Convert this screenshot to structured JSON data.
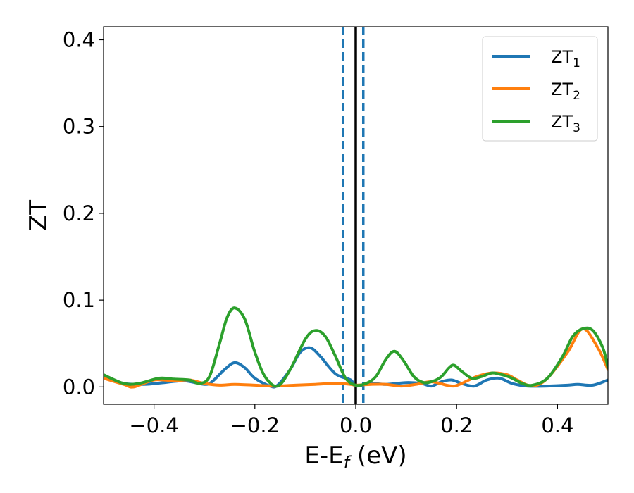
{
  "chart_data": {
    "type": "line",
    "xlabel": {
      "base": "E-E",
      "sub": "f",
      "unit": " (eV)"
    },
    "ylabel": "ZT",
    "xlim": [
      -0.5,
      0.5
    ],
    "ylim": [
      -0.02,
      0.415
    ],
    "x_ticks": [
      -0.4,
      -0.2,
      0.0,
      0.2,
      0.4
    ],
    "x_tick_labels": [
      "−0.4",
      "−0.2",
      "0.0",
      "0.2",
      "0.4"
    ],
    "y_ticks": [
      0.0,
      0.1,
      0.2,
      0.3,
      0.4
    ],
    "y_tick_labels": [
      "0.0",
      "0.1",
      "0.2",
      "0.3",
      "0.4"
    ],
    "grid": false,
    "legend_position": "top-right",
    "vlines": [
      {
        "x": -0.025,
        "style": "dashed",
        "color": "#1f77b4"
      },
      {
        "x": 0.0,
        "style": "solid",
        "color": "#000000"
      },
      {
        "x": 0.015,
        "style": "dashed",
        "color": "#1f77b4"
      }
    ],
    "series": [
      {
        "name": "ZT",
        "sub": "1",
        "color": "#1f77b4",
        "x": [
          -0.5,
          -0.46,
          -0.42,
          -0.38,
          -0.34,
          -0.3,
          -0.285,
          -0.26,
          -0.24,
          -0.22,
          -0.2,
          -0.17,
          -0.155,
          -0.13,
          -0.11,
          -0.09,
          -0.07,
          -0.04,
          -0.01,
          0.0,
          0.03,
          0.06,
          0.1,
          0.13,
          0.15,
          0.17,
          0.19,
          0.21,
          0.235,
          0.26,
          0.285,
          0.31,
          0.34,
          0.38,
          0.42,
          0.44,
          0.47,
          0.5
        ],
        "y": [
          0.012,
          0.004,
          0.003,
          0.005,
          0.007,
          0.003,
          0.006,
          0.02,
          0.028,
          0.022,
          0.01,
          0.001,
          0.002,
          0.02,
          0.04,
          0.045,
          0.035,
          0.015,
          0.008,
          0.001,
          0.004,
          0.003,
          0.005,
          0.004,
          0.001,
          0.006,
          0.008,
          0.004,
          0.001,
          0.008,
          0.01,
          0.004,
          0.001,
          0.001,
          0.002,
          0.003,
          0.002,
          0.008
        ]
      },
      {
        "name": "ZT",
        "sub": "2",
        "color": "#ff7f0e",
        "x": [
          -0.5,
          -0.46,
          -0.44,
          -0.4,
          -0.36,
          -0.33,
          -0.3,
          -0.27,
          -0.24,
          -0.2,
          -0.17,
          -0.155,
          -0.12,
          -0.08,
          -0.04,
          -0.01,
          0.0,
          0.03,
          0.06,
          0.09,
          0.12,
          0.15,
          0.18,
          0.195,
          0.21,
          0.24,
          0.27,
          0.3,
          0.32,
          0.35,
          0.38,
          0.42,
          0.45,
          0.48,
          0.5
        ],
        "y": [
          0.01,
          0.003,
          0.0,
          0.008,
          0.007,
          0.008,
          0.004,
          0.002,
          0.003,
          0.002,
          0.001,
          0.001,
          0.002,
          0.003,
          0.004,
          0.003,
          0.002,
          0.003,
          0.003,
          0.001,
          0.003,
          0.006,
          0.002,
          0.001,
          0.004,
          0.012,
          0.016,
          0.014,
          0.008,
          0.001,
          0.01,
          0.04,
          0.067,
          0.045,
          0.02
        ]
      },
      {
        "name": "ZT",
        "sub": "3",
        "color": "#2ca02c",
        "x": [
          -0.5,
          -0.46,
          -0.43,
          -0.39,
          -0.36,
          -0.33,
          -0.31,
          -0.29,
          -0.27,
          -0.255,
          -0.24,
          -0.22,
          -0.2,
          -0.18,
          -0.155,
          -0.13,
          -0.1,
          -0.08,
          -0.06,
          -0.04,
          -0.02,
          0.0,
          0.02,
          0.04,
          0.06,
          0.077,
          0.095,
          0.115,
          0.135,
          0.155,
          0.17,
          0.185,
          0.195,
          0.21,
          0.23,
          0.25,
          0.27,
          0.29,
          0.31,
          0.33,
          0.35,
          0.38,
          0.41,
          0.43,
          0.45,
          0.47,
          0.49,
          0.5
        ],
        "y": [
          0.014,
          0.004,
          0.004,
          0.01,
          0.009,
          0.008,
          0.004,
          0.012,
          0.05,
          0.08,
          0.091,
          0.078,
          0.04,
          0.012,
          0.001,
          0.02,
          0.055,
          0.065,
          0.058,
          0.035,
          0.01,
          0.002,
          0.004,
          0.012,
          0.032,
          0.041,
          0.03,
          0.012,
          0.005,
          0.007,
          0.012,
          0.022,
          0.025,
          0.018,
          0.01,
          0.012,
          0.016,
          0.014,
          0.01,
          0.004,
          0.002,
          0.01,
          0.035,
          0.058,
          0.067,
          0.065,
          0.045,
          0.022
        ]
      }
    ]
  }
}
